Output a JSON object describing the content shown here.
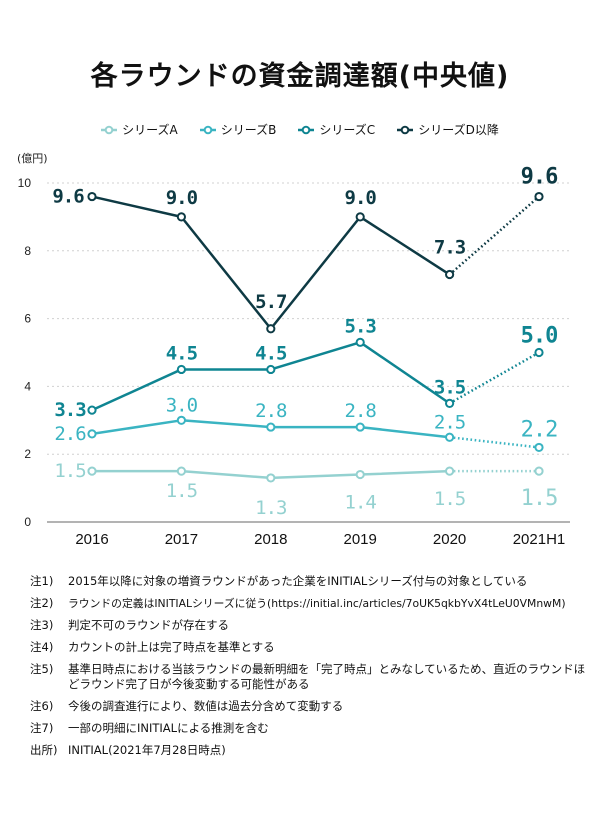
{
  "title": "各ラウンドの資金調達額(中央値)",
  "chart_data": {
    "type": "line",
    "title": "各ラウンドの資金調達額(中央値)",
    "ylabel": "(億円)",
    "xlabel": "",
    "ylim": [
      0,
      10
    ],
    "yticks": [
      0,
      2,
      4,
      6,
      8,
      10
    ],
    "grid": true,
    "legend_position": "top",
    "categories": [
      "2016",
      "2017",
      "2018",
      "2019",
      "2020",
      "2021H1"
    ],
    "dotted_last_segment": true,
    "series": [
      {
        "name": "シリーズA",
        "color": "#94d1d0",
        "values": [
          1.5,
          1.5,
          1.3,
          1.4,
          1.5,
          1.5
        ],
        "labels": [
          "1.5",
          "1.5",
          "1.3",
          "1.4",
          "1.5",
          "1.5"
        ]
      },
      {
        "name": "シリーズB",
        "color": "#3ab4c2",
        "values": [
          2.6,
          3.0,
          2.8,
          2.8,
          2.5,
          2.2
        ],
        "labels": [
          "2.6",
          "3.0",
          "2.8",
          "2.8",
          "2.5",
          "2.2"
        ]
      },
      {
        "name": "シリーズC",
        "color": "#0f8592",
        "values": [
          3.3,
          4.5,
          4.5,
          5.3,
          3.5,
          5.0
        ],
        "labels": [
          "3.3",
          "4.5",
          "4.5",
          "5.3",
          "3.5",
          "5.0"
        ]
      },
      {
        "name": "シリーズD以降",
        "color": "#0e3a44",
        "values": [
          9.6,
          9.0,
          5.7,
          9.0,
          7.3,
          9.6
        ],
        "labels": [
          "9.6",
          "9.0",
          "5.7",
          "9.0",
          "7.3",
          "9.6"
        ]
      }
    ]
  },
  "notes": [
    {
      "key": "注1)",
      "text": "2015年以降に対象の増資ラウンドがあった企業をINITIALシリーズ付与の対象としている"
    },
    {
      "key": "注2)",
      "text": "ラウンドの定義はINITIALシリーズに従う(https://initial.inc/articles/7oUK5qkbYvX4tLeU0VMnwM)"
    },
    {
      "key": "注3)",
      "text": "判定不可のラウンドが存在する"
    },
    {
      "key": "注4)",
      "text": "カウントの計上は完了時点を基準とする"
    },
    {
      "key": "注5)",
      "text": "基準日時点における当該ラウンドの最新明細を「完了時点」とみなしているため、直近のラウンドほどラウンド完了日が今後変動する可能性がある"
    },
    {
      "key": "注6)",
      "text": "今後の調査進行により、数値は過去分含めて変動する"
    },
    {
      "key": "注7)",
      "text": "一部の明細にINITIALによる推測を含む"
    },
    {
      "key": "出所)",
      "text": "INITIAL(2021年7月28日時点)"
    }
  ]
}
